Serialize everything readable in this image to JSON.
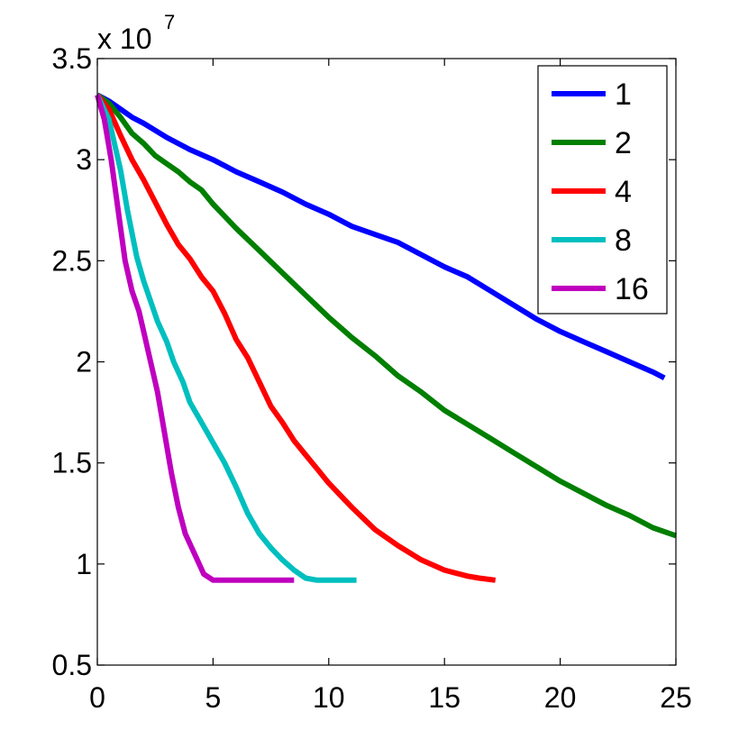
{
  "chart_data": {
    "type": "line",
    "xlim": [
      0,
      25
    ],
    "ylim": [
      5000000,
      35000000
    ],
    "x_ticks": [
      "0",
      "5",
      "10",
      "15",
      "20",
      "25"
    ],
    "y_ticks": [
      "0.5",
      "1",
      "1.5",
      "2",
      "2.5",
      "3",
      "3.5"
    ],
    "y_multiplier_base": "x 10",
    "y_multiplier_exp": "7",
    "grid": false,
    "legend_position": "top-right",
    "series": [
      {
        "name": "1",
        "color": "#0000ff",
        "x": [
          0,
          0.5,
          1,
          1.5,
          2,
          3,
          4,
          5,
          6,
          7,
          8,
          9,
          10,
          11,
          12,
          13,
          14,
          15,
          16,
          17,
          18,
          19,
          20,
          21,
          22,
          23,
          24,
          24.5
        ],
        "y": [
          33200000,
          32900000,
          32500000,
          32100000,
          31800000,
          31100000,
          30500000,
          30000000,
          29400000,
          28900000,
          28400000,
          27800000,
          27300000,
          26700000,
          26300000,
          25900000,
          25300000,
          24700000,
          24200000,
          23500000,
          22800000,
          22100000,
          21500000,
          21000000,
          20500000,
          20000000,
          19500000,
          19200000
        ]
      },
      {
        "name": "2",
        "color": "#007f00",
        "x": [
          0,
          0.5,
          1,
          1.5,
          2,
          2.5,
          3,
          3.5,
          4,
          4.5,
          5,
          6,
          7,
          8,
          9,
          10,
          11,
          12,
          13,
          14,
          15,
          16,
          17,
          18,
          19,
          20,
          21,
          22,
          23,
          24,
          25
        ],
        "y": [
          33200000,
          32800000,
          32100000,
          31300000,
          30800000,
          30200000,
          29800000,
          29400000,
          28900000,
          28500000,
          27800000,
          26600000,
          25500000,
          24400000,
          23300000,
          22200000,
          21200000,
          20300000,
          19300000,
          18500000,
          17600000,
          16900000,
          16200000,
          15500000,
          14800000,
          14100000,
          13500000,
          12900000,
          12400000,
          11800000,
          11400000
        ]
      },
      {
        "name": "4",
        "color": "#ff0000",
        "x": [
          0,
          0.5,
          1,
          1.5,
          2,
          2.5,
          3,
          3.5,
          4,
          4.5,
          5,
          5.5,
          6,
          6.5,
          7,
          7.5,
          8,
          8.5,
          9,
          9.5,
          10,
          11,
          12,
          13,
          14,
          15,
          16,
          16.5,
          17.2
        ],
        "y": [
          33200000,
          32500000,
          31200000,
          30000000,
          29000000,
          27900000,
          26800000,
          25800000,
          25100000,
          24200000,
          23500000,
          22400000,
          21100000,
          20200000,
          19000000,
          17800000,
          17000000,
          16100000,
          15400000,
          14700000,
          14000000,
          12800000,
          11700000,
          10900000,
          10200000,
          9700000,
          9400000,
          9300000,
          9200000
        ]
      },
      {
        "name": "8",
        "color": "#00bfbf",
        "x": [
          0,
          0.5,
          1,
          1.3,
          1.7,
          2,
          2.3,
          2.6,
          3,
          3.3,
          3.7,
          4,
          4.5,
          5,
          5.5,
          6,
          6.5,
          7,
          7.5,
          8,
          8.5,
          9,
          9.5,
          10,
          11.2
        ],
        "y": [
          33200000,
          32000000,
          29500000,
          27500000,
          25200000,
          24000000,
          23000000,
          22000000,
          21000000,
          20000000,
          19000000,
          18000000,
          17000000,
          16000000,
          15000000,
          13800000,
          12500000,
          11500000,
          10800000,
          10200000,
          9700000,
          9300000,
          9200000,
          9200000,
          9200000
        ]
      },
      {
        "name": "16",
        "color": "#bf00bf",
        "x": [
          0,
          0.3,
          0.6,
          0.9,
          1.2,
          1.5,
          1.8,
          2,
          2.3,
          2.6,
          2.9,
          3.2,
          3.5,
          3.8,
          4.2,
          4.6,
          5,
          6,
          7,
          8,
          8.5
        ],
        "y": [
          33200000,
          32000000,
          30000000,
          27500000,
          25000000,
          23500000,
          22500000,
          21500000,
          20000000,
          18500000,
          16500000,
          14500000,
          12800000,
          11500000,
          10500000,
          9500000,
          9200000,
          9200000,
          9200000,
          9200000,
          9200000
        ]
      }
    ]
  }
}
